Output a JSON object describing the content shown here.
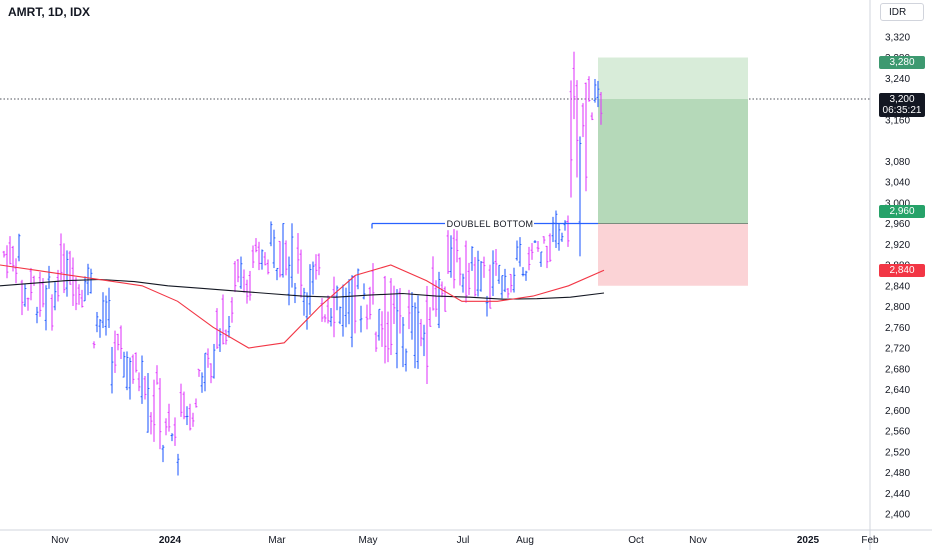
{
  "header": {
    "symbol_line": "AMRT, 1D, IDX"
  },
  "currency": "IDR",
  "colors": {
    "up": "#2962ff",
    "down": "#e040fb",
    "ma_fast": "#f23645",
    "ma_slow": "#131722",
    "profit_zone": "#b5d9b9",
    "profit_zone_top": "#d8ecd9",
    "loss_zone": "#fbd3d6",
    "entry_tag": "#26a269",
    "stop_tag": "#f23645",
    "target_tag": "#3d9970",
    "last_tag": "#131722"
  },
  "price_tags": {
    "target": "3,280",
    "last_price": "3,200",
    "countdown": "06:35:21",
    "entry": "2,960",
    "stop": "2,840"
  },
  "annotation": {
    "label": "DOUBLEL BOTTOM",
    "price": 2960
  },
  "chart_data": {
    "type": "ohlc",
    "title": "AMRT, 1D, IDX",
    "y_axis": {
      "ticks": [
        2400,
        2440,
        2480,
        2520,
        2560,
        2600,
        2640,
        2680,
        2720,
        2760,
        2800,
        2840,
        2880,
        2920,
        2960,
        3000,
        3040,
        3080,
        3160,
        3200,
        3240,
        3280,
        3320
      ],
      "tick_labels": [
        "2,400",
        "2,440",
        "2,480",
        "2,520",
        "2,560",
        "2,600",
        "2,640",
        "2,680",
        "2,720",
        "2,760",
        "2,800",
        "2,840",
        "2,880",
        "2,920",
        "2,960",
        "3,000",
        "3,040",
        "3,080",
        "3,160",
        "3,200",
        "3,240",
        "3,280",
        "3,320"
      ],
      "ylim": [
        2380,
        3380
      ]
    },
    "x_axis": {
      "labels": [
        {
          "text": "Nov",
          "bold": false
        },
        {
          "text": "2024",
          "bold": true
        },
        {
          "text": "Mar",
          "bold": false
        },
        {
          "text": "May",
          "bold": false
        },
        {
          "text": "Jul",
          "bold": false
        },
        {
          "text": "Aug",
          "bold": false
        },
        {
          "text": "Oct",
          "bold": false
        },
        {
          "text": "Nov",
          "bold": false
        },
        {
          "text": "2025",
          "bold": true
        },
        {
          "text": "Feb",
          "bold": false
        }
      ]
    },
    "last_price": 3200,
    "position": {
      "entry": 2960,
      "target": 3280,
      "stop": 2840
    },
    "segments": [
      [
        2940,
        2860
      ],
      [
        2880,
        2780
      ],
      [
        2860,
        2760
      ],
      [
        2920,
        2820
      ],
      [
        2900,
        2800
      ],
      [
        2820,
        2720
      ],
      [
        2760,
        2640
      ],
      [
        2720,
        2620
      ],
      [
        2680,
        2540
      ],
      [
        2600,
        2490
      ],
      [
        2640,
        2560
      ],
      [
        2720,
        2640
      ],
      [
        2820,
        2720
      ],
      [
        2900,
        2820
      ],
      [
        2920,
        2860
      ],
      [
        2960,
        2860
      ],
      [
        2940,
        2820
      ],
      [
        2900,
        2780
      ],
      [
        2880,
        2760
      ],
      [
        2860,
        2740
      ],
      [
        2880,
        2760
      ],
      [
        2860,
        2700
      ],
      [
        2840,
        2660
      ],
      [
        2820,
        2680
      ],
      [
        2880,
        2760
      ],
      [
        2940,
        2840
      ],
      [
        2920,
        2820
      ],
      [
        2900,
        2780
      ],
      [
        2880,
        2820
      ],
      [
        2920,
        2860
      ],
      [
        2940,
        2880
      ],
      [
        2980,
        2920
      ],
      [
        3280,
        2960
      ],
      [
        3240,
        3150
      ]
    ],
    "ma_fast": [
      2880,
      2870,
      2860,
      2850,
      2840,
      2810,
      2760,
      2720,
      2730,
      2800,
      2860,
      2880,
      2850,
      2810,
      2810,
      2820,
      2840,
      2870
    ],
    "ma_slow": [
      2840,
      2845,
      2850,
      2852,
      2848,
      2840,
      2835,
      2830,
      2825,
      2820,
      2818,
      2822,
      2825,
      2820,
      2818,
      2814,
      2815,
      2818,
      2826
    ]
  }
}
